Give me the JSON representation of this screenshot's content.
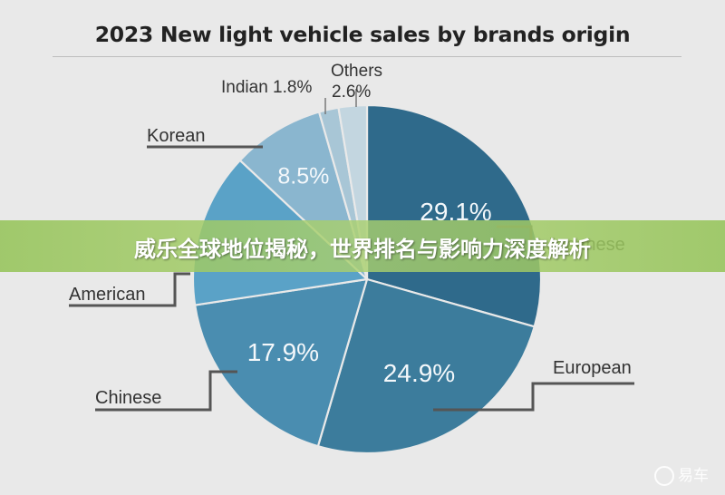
{
  "chart_data": {
    "type": "pie",
    "title": "2023 New light vehicle sales by brands origin",
    "slices": [
      {
        "label": "Japanese",
        "value": 29.1,
        "value_label": "29.1%",
        "color": "#2f6a8b"
      },
      {
        "label": "European",
        "value": 24.9,
        "value_label": "24.9%",
        "color": "#3c7c9c"
      },
      {
        "label": "Chinese",
        "value": 17.9,
        "value_label": "17.9%",
        "color": "#4a8db0"
      },
      {
        "label": "American",
        "value": 14.2,
        "value_label": "",
        "color": "#5aa2c7"
      },
      {
        "label": "Korean",
        "value": 8.5,
        "value_label": "8.5%",
        "color": "#8ab6cf"
      },
      {
        "label": "Indian",
        "value": 1.8,
        "value_label": "Indian 1.8%",
        "color": "#a8c6d6"
      },
      {
        "label": "Others",
        "value": 2.6,
        "value_label": "2.6%",
        "color": "#c3d6e0"
      }
    ]
  },
  "banner": {
    "text": "威乐全球地位揭秘，世界排名与影响力深度解析"
  },
  "watermark": {
    "text": "易车"
  }
}
